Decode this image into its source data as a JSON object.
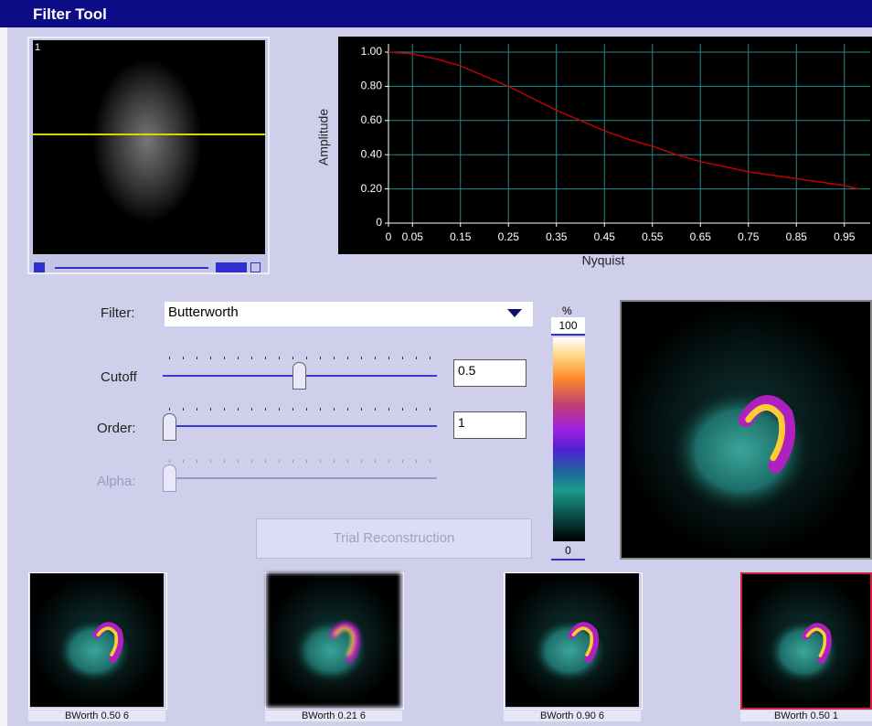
{
  "window": {
    "title": "Filter Tool"
  },
  "image_panel": {
    "frame_number": "1"
  },
  "chart_data": {
    "type": "line",
    "x_label": "Nyquist",
    "y_label": "Amplitude",
    "x": [
      0,
      0.05,
      0.1,
      0.15,
      0.2,
      0.25,
      0.3,
      0.35,
      0.4,
      0.45,
      0.5,
      0.55,
      0.6,
      0.65,
      0.7,
      0.75,
      0.8,
      0.85,
      0.9,
      0.95,
      0.98
    ],
    "values": [
      1.0,
      0.99,
      0.96,
      0.92,
      0.86,
      0.8,
      0.73,
      0.66,
      0.6,
      0.54,
      0.49,
      0.45,
      0.4,
      0.36,
      0.33,
      0.3,
      0.28,
      0.26,
      0.24,
      0.22,
      0.2
    ],
    "color": "#c00000",
    "xlim": [
      0,
      1
    ],
    "ylim": [
      0,
      1
    ],
    "xticks": [
      0,
      0.05,
      0.15,
      0.25,
      0.35,
      0.45,
      0.55,
      0.65,
      0.75,
      0.85,
      0.95
    ],
    "yticks": [
      0,
      {
        "value": 0.2,
        "label": "0.20"
      },
      {
        "value": 0.4,
        "label": "0.40"
      },
      {
        "value": 0.6,
        "label": "0.60"
      },
      {
        "value": 0.8,
        "label": "0.80"
      },
      {
        "value": 1,
        "label": "1.00"
      }
    ],
    "grid": true
  },
  "controls": {
    "filter": {
      "label": "Filter:",
      "value": "Butterworth"
    },
    "cutoff": {
      "label": "Cutoff",
      "value": "0.5"
    },
    "order": {
      "label": "Order:",
      "value": "1"
    },
    "alpha": {
      "label": "Alpha:"
    },
    "trial_button": "Trial Reconstruction"
  },
  "colorbar": {
    "unit": "%",
    "max": "100",
    "min": "0"
  },
  "thumbnails": [
    {
      "caption": "BWorth 0.50 6"
    },
    {
      "caption": "BWorth 0.21 6"
    },
    {
      "caption": "BWorth 0.90 6"
    },
    {
      "caption": "BWorth 0.50 1"
    }
  ]
}
